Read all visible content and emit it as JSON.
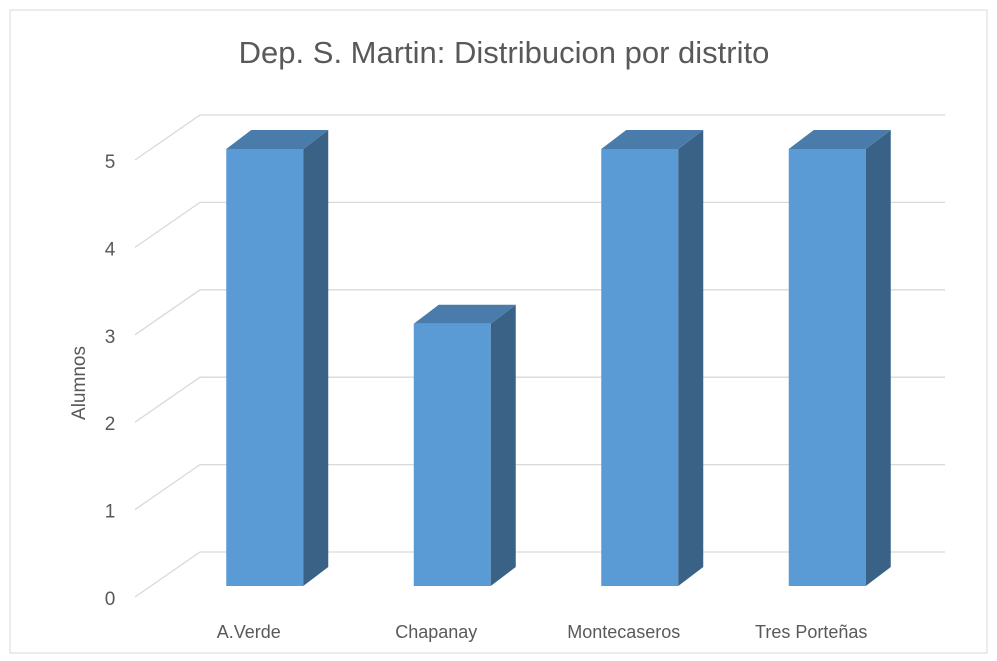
{
  "chart_data": {
    "type": "bar3d",
    "title": "Dep. S. Martin: Distribucion por distrito",
    "y_label": "Alumnos",
    "categories": [
      "A.Verde",
      "Chapanay",
      "Montecaseros",
      "Tres Porteñas"
    ],
    "values": [
      5,
      3,
      5,
      5
    ],
    "color": "#5b9bd5",
    "ylim": [
      0,
      5
    ],
    "yticks": [
      0,
      1,
      2,
      3,
      4,
      5
    ],
    "grid": true
  }
}
